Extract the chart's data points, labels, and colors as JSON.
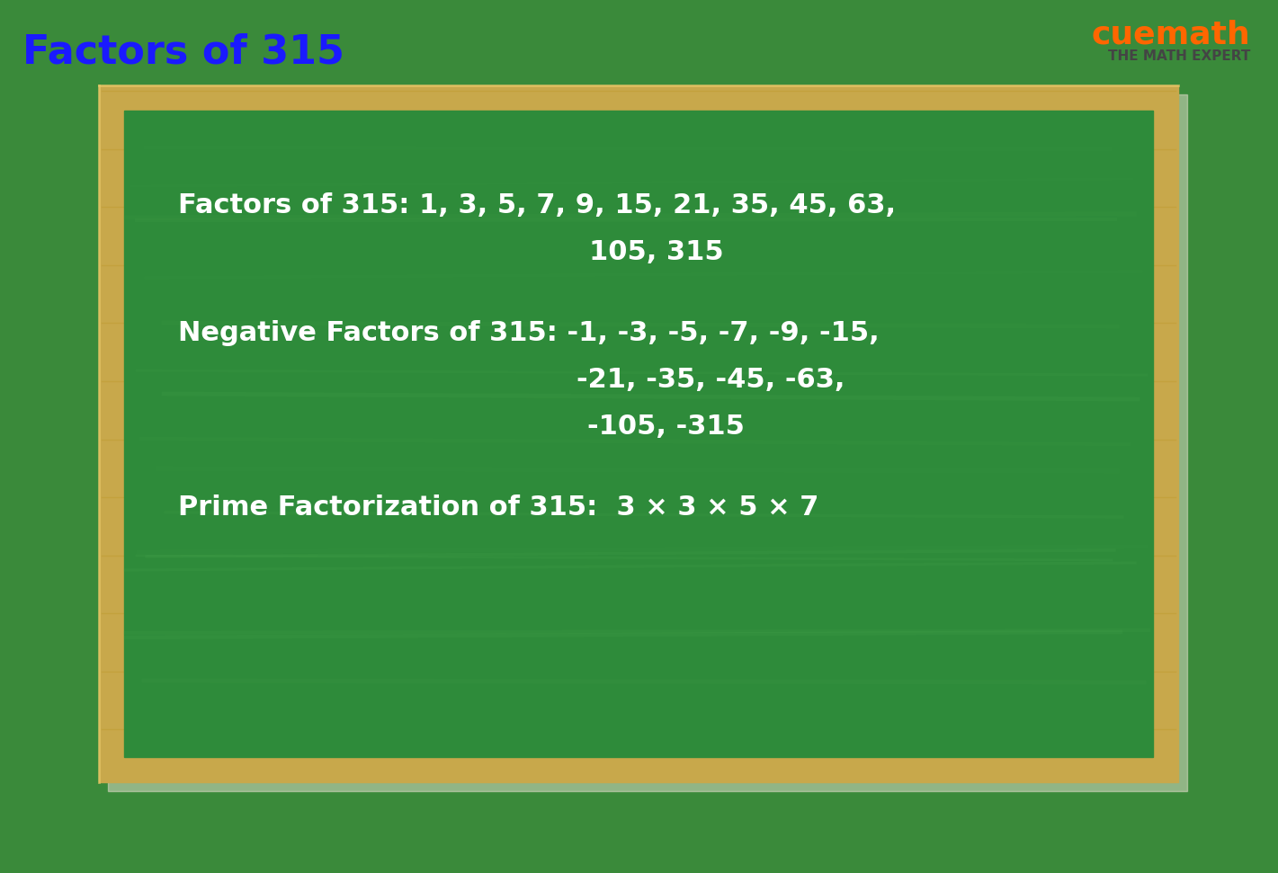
{
  "title": "Factors of 315",
  "title_color": "#1a1aff",
  "title_fontsize": 32,
  "bg_color": "#3a8a3a",
  "board_outer_color": "#c8a84b",
  "board_inner_color": "#2e7d32",
  "board_chalk_color": "#4caf50",
  "text_color": "#ffffff",
  "line1": "Factors of 315: 1, 3, 5, 7, 9, 15, 21, 35, 45, 63,",
  "line2": "105, 315",
  "line3": "Negative Factors of 315: -1, -3, -5, -7, -9, -15,",
  "line4": "-21, -35, -45, -63,",
  "line5": "-105, -315",
  "line6": "Prime Factorization of 315:  3 × 3 × 5 × 7",
  "content_fontsize": 22,
  "cuemath_text": "cuemath",
  "cuemath_sub": "THE MATH EXPERT"
}
